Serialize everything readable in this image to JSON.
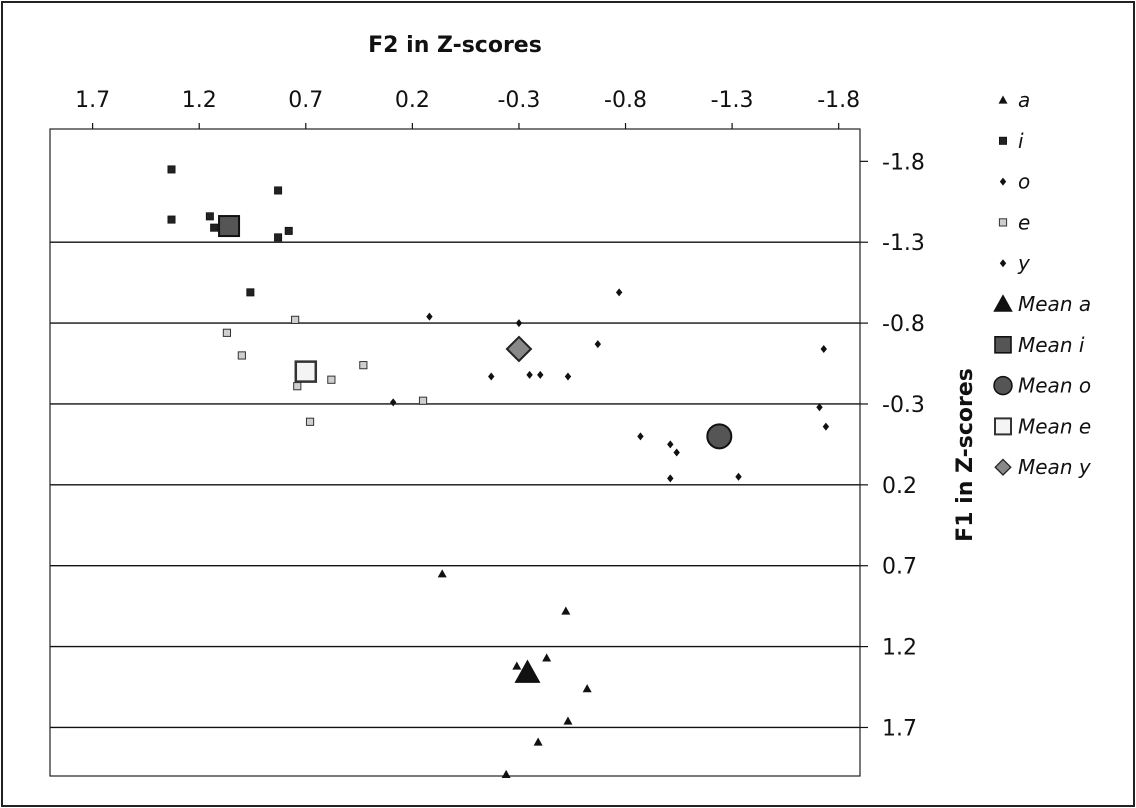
{
  "chart_data": {
    "type": "scatter",
    "title": "",
    "xlabel": "F2 in Z-scores",
    "ylabel": "F1 in Z-scores",
    "x_reversed": true,
    "y_reversed": true,
    "xlim": [
      1.9,
      -1.9
    ],
    "ylim": [
      -2.0,
      2.0
    ],
    "x_ticks": [
      1.7,
      1.2,
      0.7,
      0.2,
      -0.3,
      -0.8,
      -1.3,
      -1.8
    ],
    "x_tick_labels": [
      "1.7",
      "1.2",
      "0.7",
      "0.2",
      "-0.3",
      "-0.8",
      "-1.3",
      "-1.8"
    ],
    "y_ticks": [
      -1.8,
      -1.3,
      -0.8,
      -0.3,
      0.2,
      0.7,
      1.2,
      1.7
    ],
    "y_tick_labels": [
      "-1.8",
      "-1.3",
      "-0.8",
      "-0.3",
      "0.2",
      "0.7",
      "1.2",
      "1.7"
    ],
    "gridlines": "horizontal",
    "legend_position": "right",
    "series": [
      {
        "name": "a",
        "marker": "triangle",
        "color": "#111111",
        "size": "small",
        "points": [
          {
            "x": 0.06,
            "y": 0.75
          },
          {
            "x": -0.52,
            "y": 0.98
          },
          {
            "x": -0.29,
            "y": 1.32
          },
          {
            "x": -0.43,
            "y": 1.27
          },
          {
            "x": -0.62,
            "y": 1.46
          },
          {
            "x": -0.53,
            "y": 1.66
          },
          {
            "x": -0.39,
            "y": 1.79
          },
          {
            "x": -0.24,
            "y": 1.99
          }
        ]
      },
      {
        "name": "i",
        "marker": "square",
        "color": "#222222",
        "size": "small",
        "points": [
          {
            "x": 1.33,
            "y": -1.75
          },
          {
            "x": 1.33,
            "y": -1.44
          },
          {
            "x": 1.15,
            "y": -1.46
          },
          {
            "x": 1.13,
            "y": -1.39
          },
          {
            "x": 0.83,
            "y": -1.62
          },
          {
            "x": 0.83,
            "y": -1.33
          },
          {
            "x": 0.78,
            "y": -1.37
          },
          {
            "x": 0.96,
            "y": -0.99
          }
        ]
      },
      {
        "name": "o",
        "marker": "diamond",
        "color": "#111111",
        "size": "small",
        "points": [
          {
            "x": 0.12,
            "y": -0.84
          },
          {
            "x": -0.77,
            "y": -0.99
          },
          {
            "x": -0.67,
            "y": -0.67
          },
          {
            "x": -0.4,
            "y": -0.48
          },
          {
            "x": -0.53,
            "y": -0.47
          },
          {
            "x": -0.87,
            "y": -0.1
          },
          {
            "x": -1.01,
            "y": -0.05
          },
          {
            "x": -1.04,
            "y": 0.0
          },
          {
            "x": -1.01,
            "y": 0.16
          },
          {
            "x": -1.33,
            "y": 0.15
          },
          {
            "x": -1.73,
            "y": -0.64
          },
          {
            "x": -1.71,
            "y": -0.28
          },
          {
            "x": -1.74,
            "y": -0.16
          }
        ]
      },
      {
        "name": "e",
        "marker": "square-open",
        "color": "#333333",
        "size": "small",
        "points": [
          {
            "x": 1.07,
            "y": -0.74
          },
          {
            "x": 1.0,
            "y": -0.6
          },
          {
            "x": 0.75,
            "y": -0.82
          },
          {
            "x": 0.43,
            "y": -0.54
          },
          {
            "x": 0.58,
            "y": -0.45
          },
          {
            "x": 0.74,
            "y": -0.41
          },
          {
            "x": 0.68,
            "y": -0.19
          },
          {
            "x": 0.15,
            "y": -0.32
          }
        ]
      },
      {
        "name": "y",
        "marker": "diamond",
        "color": "#111111",
        "size": "small",
        "points": [
          {
            "x": -0.3,
            "y": -0.8
          },
          {
            "x": -0.17,
            "y": -0.47
          },
          {
            "x": -0.35,
            "y": -0.48
          },
          {
            "x": 0.29,
            "y": -0.31
          }
        ]
      },
      {
        "name": "Mean a",
        "marker": "triangle",
        "color": "#111111",
        "size": "large",
        "points": [
          {
            "x": -0.34,
            "y": 1.36
          }
        ]
      },
      {
        "name": "Mean i",
        "marker": "square",
        "color": "#555555",
        "size": "large",
        "points": [
          {
            "x": 1.06,
            "y": -1.4
          }
        ]
      },
      {
        "name": "Mean o",
        "marker": "circle",
        "color": "#555555",
        "size": "large",
        "points": [
          {
            "x": -1.24,
            "y": -0.1
          }
        ]
      },
      {
        "name": "Mean e",
        "marker": "square-open",
        "color": "#444444",
        "size": "large",
        "points": [
          {
            "x": 0.7,
            "y": -0.5
          }
        ]
      },
      {
        "name": "Mean y",
        "marker": "diamond-gray",
        "color": "#888888",
        "size": "large",
        "points": [
          {
            "x": -0.3,
            "y": -0.64
          }
        ]
      }
    ]
  }
}
